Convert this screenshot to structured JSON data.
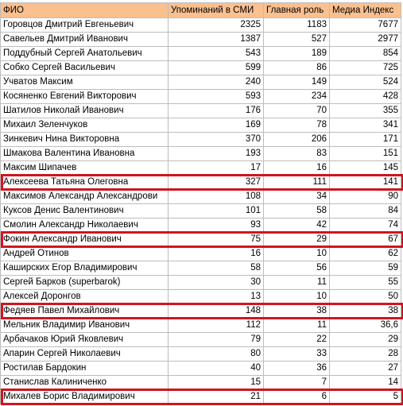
{
  "table": {
    "header": [
      "ФИО",
      "Упоминаний в СМИ",
      "Главная роль",
      "Медиа Индекс"
    ],
    "rows": [
      [
        "Горовцов Дмитрий Евгеньевич",
        2325,
        1183,
        7677
      ],
      [
        "Савельев Дмитрий Иванович",
        1387,
        527,
        2977
      ],
      [
        "Поддубный Сергей Анатольевич",
        543,
        189,
        854
      ],
      [
        "Собко Сергей Васильевич",
        599,
        86,
        725
      ],
      [
        "Учватов Максим",
        240,
        149,
        524
      ],
      [
        "Косяненко Евгений Викторович",
        593,
        234,
        428
      ],
      [
        "Шатилов Николай Иванович",
        176,
        70,
        355
      ],
      [
        "Михаил Зеленчуков",
        169,
        78,
        341
      ],
      [
        "Зинкевич Нина Викторовна",
        370,
        206,
        171
      ],
      [
        "Шмакова Валентина Ивановна",
        193,
        83,
        151
      ],
      [
        "Максим Шипачев",
        17,
        16,
        145
      ],
      [
        "Алексеева Татьяна Олеговна",
        327,
        111,
        141
      ],
      [
        "Максимов Александр Александрови",
        108,
        34,
        90
      ],
      [
        "Куксов Денис Валентинович",
        101,
        58,
        84
      ],
      [
        "Смолин Александр Николаевич",
        93,
        42,
        74
      ],
      [
        "Фокин Александр Иванович",
        75,
        29,
        67
      ],
      [
        "Андрей Отинов",
        16,
        10,
        62
      ],
      [
        "Каширских Егор Владимирович",
        58,
        56,
        59
      ],
      [
        "Сергей Барков (superbarok)",
        30,
        11,
        55
      ],
      [
        "Алексей Доронгов",
        13,
        10,
        50
      ],
      [
        "Федяев Павел Михайлович",
        148,
        38,
        38
      ],
      [
        "Мельник Владимир Иванович",
        112,
        11,
        "36,6"
      ],
      [
        "Арбачаков Юрий Яковлевич",
        79,
        22,
        29
      ],
      [
        "Апарин Сергей Николаевич",
        80,
        33,
        28
      ],
      [
        "Ростилав Бардокин",
        40,
        36,
        27
      ],
      [
        "Станислав Калиниченко",
        15,
        7,
        14
      ],
      [
        "Михалев Борис Владимирович",
        21,
        6,
        5
      ]
    ]
  }
}
